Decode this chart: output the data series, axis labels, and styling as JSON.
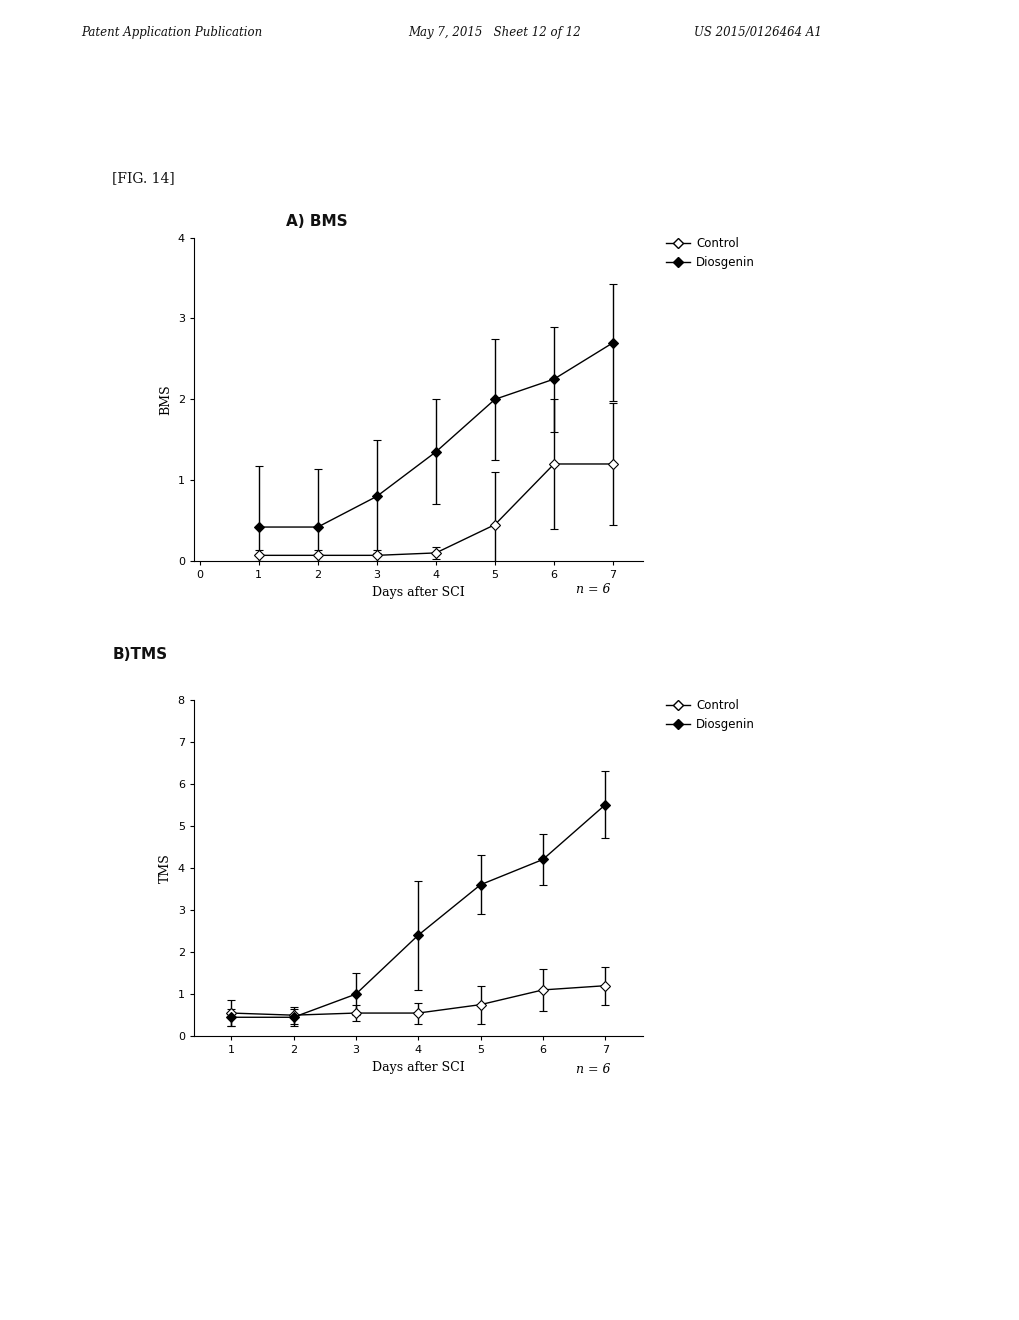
{
  "header_left": "Patent Application Publication",
  "header_middle": "May 7, 2015   Sheet 12 of 12",
  "header_right": "US 2015/0126464 A1",
  "fig_label": "[FIG. 14]",
  "panel_A_title": "A) BMS",
  "panel_B_title": "B)TMS",
  "x_days": [
    1,
    2,
    3,
    4,
    5,
    6,
    7
  ],
  "bms_control_y": [
    0.07,
    0.07,
    0.07,
    0.1,
    0.45,
    1.2,
    1.2
  ],
  "bms_control_err": [
    0.07,
    0.07,
    0.07,
    0.07,
    0.65,
    0.8,
    0.75
  ],
  "bms_diosgenin_y": [
    0.42,
    0.42,
    0.8,
    1.35,
    2.0,
    2.25,
    2.7
  ],
  "bms_diosgenin_err": [
    0.75,
    0.72,
    0.7,
    0.65,
    0.75,
    0.65,
    0.72
  ],
  "bms_ylabel": "BMS",
  "bms_xlabel": "Days after SCI",
  "bms_ylim": [
    0,
    4
  ],
  "bms_yticks": [
    0,
    1,
    2,
    3,
    4
  ],
  "bms_n_label": "n = 6",
  "tms_control_y": [
    0.55,
    0.5,
    0.55,
    0.55,
    0.75,
    1.1,
    1.2
  ],
  "tms_control_err": [
    0.3,
    0.2,
    0.2,
    0.25,
    0.45,
    0.5,
    0.45
  ],
  "tms_diosgenin_y": [
    0.45,
    0.45,
    1.0,
    2.4,
    3.6,
    4.2,
    5.5
  ],
  "tms_diosgenin_err": [
    0.2,
    0.2,
    0.5,
    1.3,
    0.7,
    0.6,
    0.8
  ],
  "tms_ylabel": "TMS",
  "tms_xlabel": "Days after SCI",
  "tms_ylim": [
    0,
    8
  ],
  "tms_yticks": [
    0,
    1,
    2,
    3,
    4,
    5,
    6,
    7,
    8
  ],
  "tms_n_label": "n = 6",
  "color_black": "#000000",
  "background_color": "#ffffff",
  "legend_control": "Control",
  "legend_diosgenin": "Diosgenin"
}
